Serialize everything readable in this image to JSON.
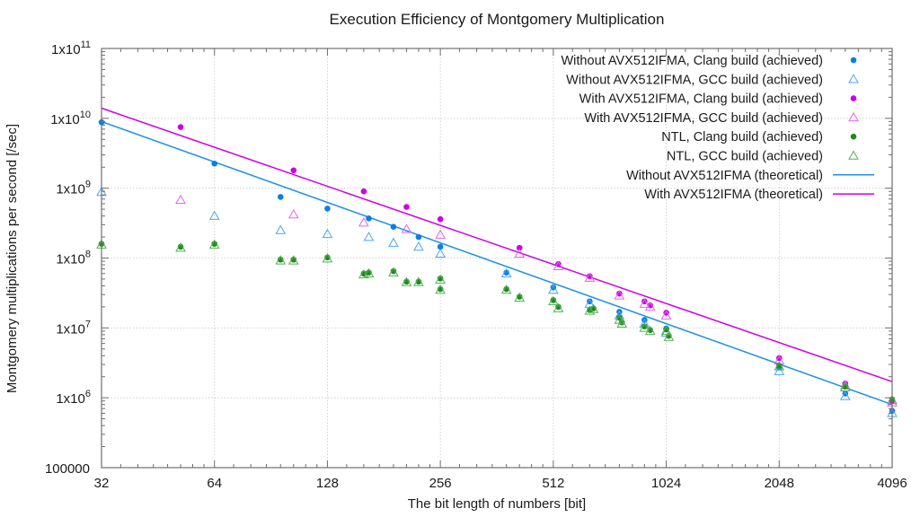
{
  "chart_data": {
    "type": "scatter",
    "title": "Execution Efficiency of Montgomery Multiplication",
    "xlabel": "The bit length of numbers [bit]",
    "ylabel": "Montgomery multiplications per second [/sec]",
    "xscale": "log2",
    "yscale": "log10",
    "xlim": [
      32,
      4096
    ],
    "ylim": [
      100000,
      100000000000
    ],
    "xticks": [
      32,
      64,
      128,
      256,
      512,
      1024,
      2048,
      4096
    ],
    "xtick_labels": [
      "32",
      "64",
      "128",
      "256",
      "512",
      "1024",
      "2048",
      "4096"
    ],
    "yticks": [
      100000,
      1000000,
      10000000,
      100000000,
      1000000000,
      10000000000,
      100000000000
    ],
    "ytick_labels": [
      {
        "base": "100000",
        "exp": ""
      },
      {
        "base": "1x10",
        "exp": "6"
      },
      {
        "base": "1x10",
        "exp": "7"
      },
      {
        "base": "1x10",
        "exp": "8"
      },
      {
        "base": "1x10",
        "exp": "9"
      },
      {
        "base": "1x10",
        "exp": "10"
      },
      {
        "base": "1x10",
        "exp": "11"
      }
    ],
    "grid": true,
    "legend_position": "top-right",
    "series": [
      {
        "name": "Without AVX512IFMA, Clang build (achieved)",
        "marker": "filled-circle",
        "color": "#0a7fe6",
        "points": [
          [
            32,
            8800000000
          ],
          [
            64,
            2250000000
          ],
          [
            96,
            750000000
          ],
          [
            128,
            510000000
          ],
          [
            165,
            370000000
          ],
          [
            192,
            280000000
          ],
          [
            224,
            200000000
          ],
          [
            256,
            145000000
          ],
          [
            384,
            62000000
          ],
          [
            512,
            38000000
          ],
          [
            640,
            24000000
          ],
          [
            768,
            17000000
          ],
          [
            896,
            13000000
          ],
          [
            1024,
            9800000
          ],
          [
            2048,
            2700000
          ],
          [
            3072,
            1150000
          ],
          [
            4096,
            650000
          ]
        ]
      },
      {
        "name": "Without AVX512IFMA, GCC build (achieved)",
        "marker": "open-triangle",
        "color": "#4ca6f0",
        "points": [
          [
            32,
            880000000
          ],
          [
            64,
            400000000
          ],
          [
            96,
            250000000
          ],
          [
            128,
            220000000
          ],
          [
            165,
            200000000
          ],
          [
            192,
            165000000
          ],
          [
            224,
            145000000
          ],
          [
            256,
            115000000
          ],
          [
            384,
            60000000
          ],
          [
            512,
            35000000
          ],
          [
            640,
            22000000
          ],
          [
            768,
            15000000
          ],
          [
            896,
            11500000
          ],
          [
            1024,
            8500000
          ],
          [
            2048,
            2400000
          ],
          [
            3072,
            1050000
          ],
          [
            4096,
            600000
          ]
        ]
      },
      {
        "name": "With AVX512IFMA, Clang build (achieved)",
        "marker": "filled-circle",
        "color": "#cc00e6",
        "points": [
          [
            52,
            7500000000
          ],
          [
            104,
            1800000000
          ],
          [
            160,
            900000000
          ],
          [
            208,
            540000000
          ],
          [
            256,
            360000000
          ],
          [
            416,
            140000000
          ],
          [
            528,
            82000000
          ],
          [
            640,
            55000000
          ],
          [
            768,
            31000000
          ],
          [
            896,
            24000000
          ],
          [
            928,
            21000000
          ],
          [
            1024,
            16500000
          ],
          [
            2048,
            3700000
          ],
          [
            3072,
            1600000
          ],
          [
            4096,
            900000
          ]
        ]
      },
      {
        "name": "With AVX512IFMA, GCC build (achieved)",
        "marker": "open-triangle",
        "color": "#e066f0",
        "points": [
          [
            52,
            680000000
          ],
          [
            104,
            420000000
          ],
          [
            160,
            320000000
          ],
          [
            208,
            260000000
          ],
          [
            256,
            215000000
          ],
          [
            416,
            115000000
          ],
          [
            528,
            76000000
          ],
          [
            640,
            52000000
          ],
          [
            768,
            29000000
          ],
          [
            896,
            22000000
          ],
          [
            928,
            20000000
          ],
          [
            1024,
            15000000
          ],
          [
            2048,
            3400000
          ],
          [
            3072,
            1500000
          ],
          [
            4096,
            850000
          ]
        ]
      },
      {
        "name": "NTL, Clang build (achieved)",
        "marker": "filled-circle",
        "color": "#1f8a1f",
        "points": [
          [
            32,
            160000000
          ],
          [
            52,
            145000000
          ],
          [
            64,
            160000000
          ],
          [
            96,
            95000000
          ],
          [
            104,
            95000000
          ],
          [
            128,
            102000000
          ],
          [
            160,
            60000000
          ],
          [
            165,
            62000000
          ],
          [
            192,
            65000000
          ],
          [
            208,
            46000000
          ],
          [
            224,
            46000000
          ],
          [
            256,
            51000000
          ],
          [
            256,
            36000000
          ],
          [
            384,
            36000000
          ],
          [
            416,
            28000000
          ],
          [
            512,
            25000000
          ],
          [
            528,
            20000000
          ],
          [
            640,
            18000000
          ],
          [
            655,
            19000000
          ],
          [
            768,
            14000000
          ],
          [
            780,
            12000000
          ],
          [
            896,
            10500000
          ],
          [
            928,
            9300000
          ],
          [
            1024,
            9500000
          ],
          [
            1040,
            7700000
          ],
          [
            2048,
            2900000
          ],
          [
            3072,
            1450000
          ],
          [
            4096,
            950000
          ]
        ]
      },
      {
        "name": "NTL, GCC build (achieved)",
        "marker": "open-triangle",
        "color": "#55b055",
        "points": [
          [
            32,
            155000000
          ],
          [
            52,
            140000000
          ],
          [
            64,
            155000000
          ],
          [
            96,
            92000000
          ],
          [
            104,
            92000000
          ],
          [
            128,
            98000000
          ],
          [
            160,
            58000000
          ],
          [
            165,
            60000000
          ],
          [
            192,
            62000000
          ],
          [
            208,
            45000000
          ],
          [
            224,
            45000000
          ],
          [
            256,
            49000000
          ],
          [
            256,
            35000000
          ],
          [
            384,
            35000000
          ],
          [
            416,
            27000000
          ],
          [
            512,
            24000000
          ],
          [
            528,
            19000000
          ],
          [
            640,
            17500000
          ],
          [
            655,
            18500000
          ],
          [
            768,
            13000000
          ],
          [
            780,
            11500000
          ],
          [
            896,
            10000000
          ],
          [
            928,
            9000000
          ],
          [
            1024,
            9000000
          ],
          [
            1040,
            7400000
          ],
          [
            2048,
            2800000
          ],
          [
            3072,
            1400000
          ],
          [
            4096,
            920000
          ]
        ]
      },
      {
        "name": "Without AVX512IFMA (theoretical)",
        "marker": "line",
        "color": "#1e90e6",
        "points": [
          [
            32,
            9000000000
          ],
          [
            4096,
            800000
          ]
        ]
      },
      {
        "name": "With AVX512IFMA (theoretical)",
        "marker": "line",
        "color": "#cc00e6",
        "points": [
          [
            32,
            14000000000
          ],
          [
            4096,
            1700000
          ]
        ]
      }
    ]
  }
}
